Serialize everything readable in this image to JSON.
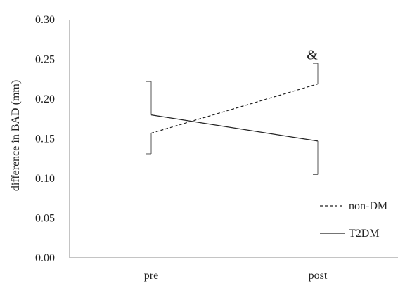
{
  "chart_data": {
    "type": "line",
    "title": "",
    "xlabel": "",
    "ylabel": "difference in BAD (mm)",
    "categories": [
      "pre",
      "post"
    ],
    "ylim": [
      0,
      0.3
    ],
    "yticks": [
      0.0,
      0.05,
      0.1,
      0.15,
      0.2,
      0.25,
      0.3
    ],
    "ytick_labels": [
      "0.00",
      "0.05",
      "0.10",
      "0.15",
      "0.20",
      "0.25",
      "0.30"
    ],
    "grid": false,
    "legend_position": "bottom-right",
    "series": [
      {
        "name": "non-DM",
        "style": "dashed",
        "color": "#222222",
        "values": [
          0.157,
          0.219
        ],
        "error_low": [
          0.131,
          null
        ],
        "error_high": [
          null,
          0.245
        ]
      },
      {
        "name": "T2DM",
        "style": "solid",
        "color": "#222222",
        "values": [
          0.18,
          0.147
        ],
        "error_low": [
          null,
          0.105
        ],
        "error_high": [
          0.222,
          null
        ]
      }
    ],
    "annotations": [
      {
        "text": "&",
        "category": "post",
        "y": 0.257
      }
    ]
  }
}
